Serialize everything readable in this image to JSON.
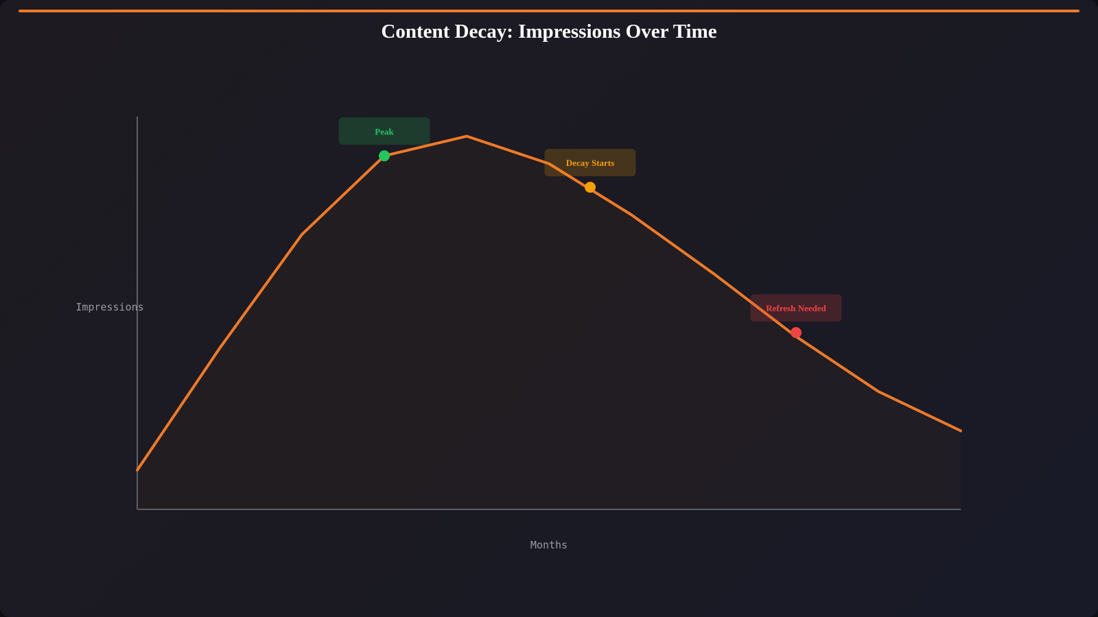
{
  "title": "Content Decay: Impressions Over Time",
  "colors": {
    "accent": "#f07a2a",
    "line": "#f07a2a",
    "axis": "#5f5f66",
    "peak": "#22c55e",
    "decay": "#f59e0b",
    "refresh": "#ef4444"
  },
  "chart_data": {
    "type": "line",
    "title": "Content Decay: Impressions Over Time",
    "xlabel": "Months",
    "ylabel": "Impressions",
    "x": [
      0,
      1,
      2,
      3,
      4,
      5,
      6,
      7,
      8,
      9,
      10
    ],
    "series": [
      {
        "values": [
          10,
          41,
          70,
          90,
          95,
          88,
          75,
          60,
          44,
          30,
          20
        ]
      }
    ],
    "xlim": [
      0,
      10
    ],
    "ylim": [
      0,
      100
    ],
    "grid": false,
    "annotations": [
      {
        "label": "Peak",
        "x": 3,
        "y": 90,
        "color": "#22c55e"
      },
      {
        "label": "Decay Starts",
        "x": 5.5,
        "y": 82,
        "color": "#f59e0b"
      },
      {
        "label": "Refresh Needed",
        "x": 8,
        "y": 45,
        "color": "#ef4444"
      }
    ]
  }
}
